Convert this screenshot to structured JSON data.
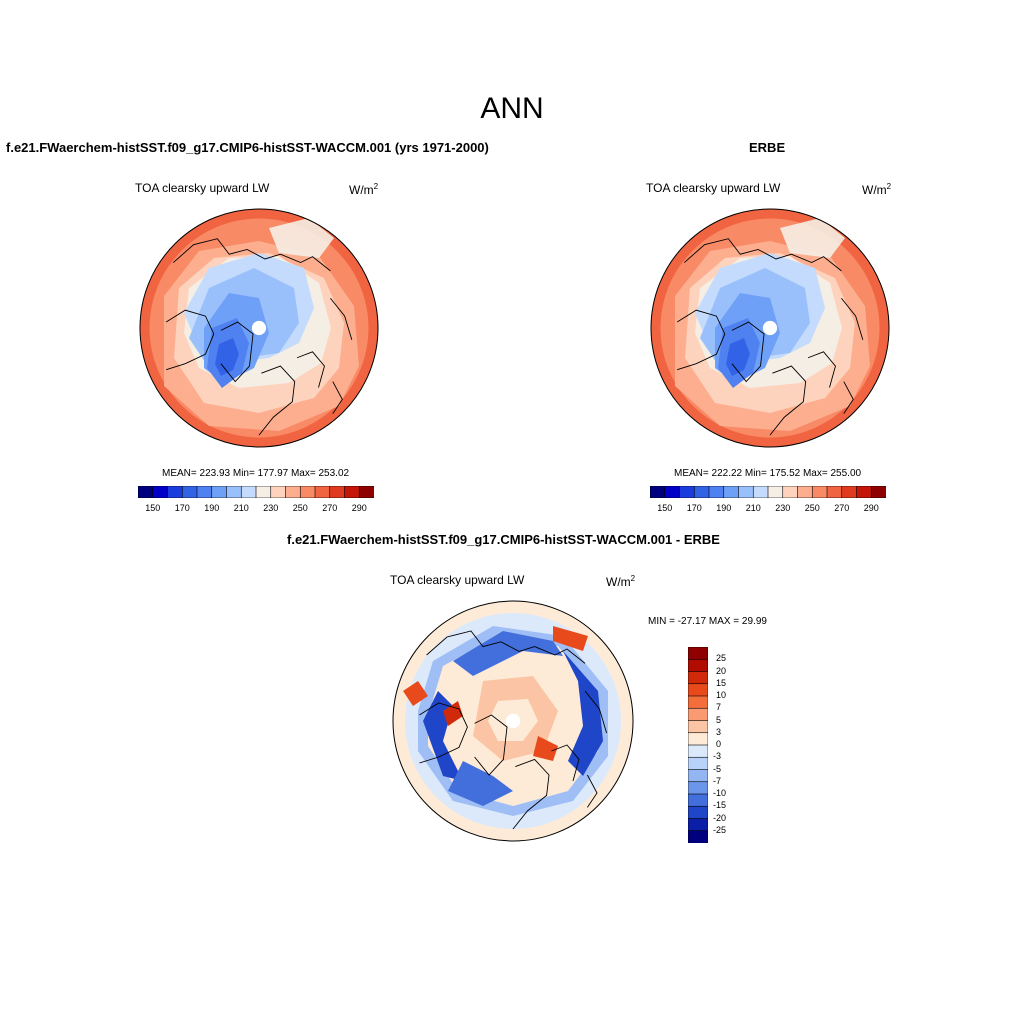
{
  "page": {
    "title": "ANN"
  },
  "panels": [
    {
      "id": "model",
      "title": "f.e21.FWaerchem-histSST.f09_g17.CMIP6-histSST-WACCM.001 (yrs 1971-2000)",
      "subtitle": "TOA clearsky upward LW",
      "units_base": "W/m",
      "units_exp": "2",
      "stats": "MEAN= 223.93  Min= 177.97  Max= 253.02"
    },
    {
      "id": "obs",
      "title": "ERBE",
      "subtitle": "TOA clearsky upward LW",
      "units_base": "W/m",
      "units_exp": "2",
      "stats": "MEAN= 222.22  Min= 175.52  Max= 255.00"
    },
    {
      "id": "diff",
      "title": "f.e21.FWaerchem-histSST.f09_g17.CMIP6-histSST-WACCM.001 - ERBE",
      "subtitle": "TOA clearsky upward LW",
      "units_base": "W/m",
      "units_exp": "2",
      "stats": "MIN = -27.17 MAX =  29.99"
    }
  ],
  "chart_data": [
    {
      "type": "heatmap",
      "title": "f.e21.FWaerchem-histSST.f09_g17.CMIP6-histSST-WACCM.001 (yrs 1971-2000)",
      "projection": "north polar stereographic",
      "variable": "TOA clearsky upward LW",
      "units": "W/m2",
      "mean": 223.93,
      "min": 177.97,
      "max": 253.02,
      "colorbar": {
        "orientation": "horizontal",
        "levels": [
          150,
          160,
          170,
          180,
          190,
          200,
          210,
          220,
          230,
          240,
          250,
          260,
          270,
          280,
          290
        ],
        "tick_labels": [
          "150",
          "170",
          "190",
          "210",
          "230",
          "250",
          "270",
          "290"
        ],
        "colors": [
          "#00007f",
          "#0000c8",
          "#1a3cdc",
          "#3262e6",
          "#4f82f0",
          "#6fa0f7",
          "#9ac0fb",
          "#c4dbfd",
          "#f5eee4",
          "#fdd3bd",
          "#fcae8f",
          "#f98a66",
          "#f06442",
          "#e03a20",
          "#c31609",
          "#8f0000"
        ]
      }
    },
    {
      "type": "heatmap",
      "title": "ERBE",
      "projection": "north polar stereographic",
      "variable": "TOA clearsky upward LW",
      "units": "W/m2",
      "mean": 222.22,
      "min": 175.52,
      "max": 255.0,
      "colorbar": {
        "orientation": "horizontal",
        "levels": [
          150,
          160,
          170,
          180,
          190,
          200,
          210,
          220,
          230,
          240,
          250,
          260,
          270,
          280,
          290
        ],
        "tick_labels": [
          "150",
          "170",
          "190",
          "210",
          "230",
          "250",
          "270",
          "290"
        ],
        "colors": [
          "#00007f",
          "#0000c8",
          "#1a3cdc",
          "#3262e6",
          "#4f82f0",
          "#6fa0f7",
          "#9ac0fb",
          "#c4dbfd",
          "#f5eee4",
          "#fdd3bd",
          "#fcae8f",
          "#f98a66",
          "#f06442",
          "#e03a20",
          "#c31609",
          "#8f0000"
        ]
      }
    },
    {
      "type": "heatmap",
      "title": "f.e21.FWaerchem-histSST.f09_g17.CMIP6-histSST-WACCM.001 - ERBE",
      "projection": "north polar stereographic",
      "variable": "TOA clearsky upward LW",
      "units": "W/m2",
      "min": -27.17,
      "max": 29.99,
      "colorbar": {
        "orientation": "vertical",
        "tick_labels": [
          "25",
          "20",
          "15",
          "10",
          "7",
          "5",
          "3",
          "0",
          "-3",
          "-5",
          "-7",
          "-10",
          "-15",
          "-20",
          "-25"
        ],
        "colors": [
          "#8f0000",
          "#b00c00",
          "#d12a0a",
          "#e84a1c",
          "#f46e3c",
          "#fa9a72",
          "#fbc4a4",
          "#fdebd8",
          "#dce9fb",
          "#b8d2f9",
          "#93b6f3",
          "#6c96ea",
          "#426fdc",
          "#1f46c8",
          "#0a1ea8",
          "#00007f"
        ]
      }
    }
  ]
}
